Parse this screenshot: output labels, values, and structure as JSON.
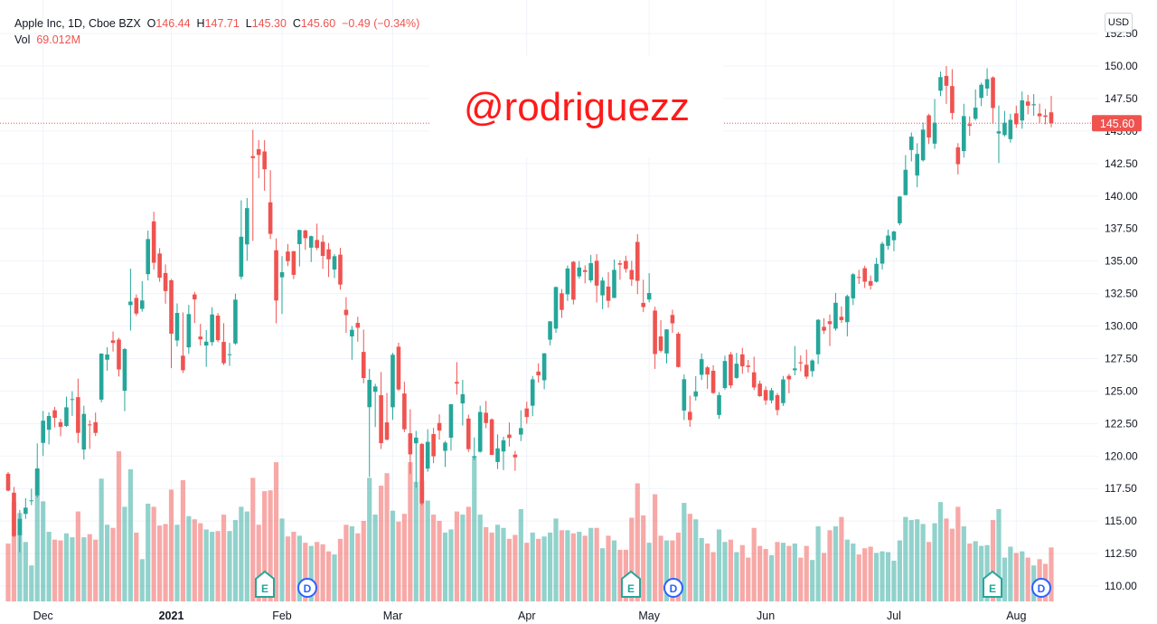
{
  "chart_data": {
    "type": "candlestick",
    "symbol": "Apple Inc, 1D, Cboe BZX",
    "legend": {
      "open_key": "O",
      "open": "146.44",
      "high_key": "H",
      "high": "147.71",
      "low_key": "L",
      "low": "145.30",
      "close_key": "C",
      "close": "145.60",
      "change": "−0.49 (−0.34%)",
      "volume_key": "Vol",
      "volume": "69.012M"
    },
    "currency": "USD",
    "watermark": "@rodriguezz",
    "events": [
      "E",
      "D",
      "E",
      "D",
      "E",
      "D"
    ],
    "up_color": "#26a69a",
    "down_color": "#ef5350",
    "grid": true,
    "ylim": [
      108.61,
      155.08
    ],
    "yticks": [
      {
        "value": 110,
        "label": "110.00"
      },
      {
        "value": 112.5,
        "label": "112.50"
      },
      {
        "value": 115,
        "label": "115.00"
      },
      {
        "value": 117.5,
        "label": "117.50"
      },
      {
        "value": 120,
        "label": "120.00"
      },
      {
        "value": 122.5,
        "label": "122.50"
      },
      {
        "value": 125,
        "label": "125.00"
      },
      {
        "value": 127.5,
        "label": "127.50"
      },
      {
        "value": 130,
        "label": "130.00"
      },
      {
        "value": 132.5,
        "label": "132.50"
      },
      {
        "value": 135,
        "label": "135.00"
      },
      {
        "value": 137.5,
        "label": "137.50"
      },
      {
        "value": 140,
        "label": "140.00"
      },
      {
        "value": 142.5,
        "label": "142.50"
      },
      {
        "value": 145,
        "label": "145.00"
      },
      {
        "value": 147.5,
        "label": "147.50"
      },
      {
        "value": 150,
        "label": "150.00"
      },
      {
        "value": 152.5,
        "label": "152.50"
      }
    ],
    "categories": [
      null,
      null,
      null,
      null,
      null,
      null,
      "Dec",
      null,
      null,
      null,
      null,
      null,
      null,
      null,
      null,
      null,
      null,
      null,
      null,
      null,
      null,
      null,
      null,
      null,
      null,
      null,
      null,
      null,
      "2021",
      null,
      null,
      null,
      null,
      null,
      null,
      null,
      null,
      null,
      null,
      null,
      null,
      null,
      null,
      null,
      null,
      null,
      null,
      "Feb",
      null,
      null,
      null,
      null,
      null,
      null,
      null,
      null,
      null,
      null,
      null,
      null,
      null,
      null,
      null,
      null,
      null,
      null,
      "Mar",
      null,
      null,
      null,
      null,
      null,
      null,
      null,
      null,
      null,
      null,
      null,
      null,
      null,
      null,
      null,
      null,
      null,
      null,
      null,
      null,
      null,
      null,
      "Apr",
      null,
      null,
      null,
      null,
      null,
      null,
      null,
      null,
      null,
      null,
      null,
      null,
      null,
      null,
      null,
      null,
      null,
      null,
      null,
      null,
      "May",
      null,
      null,
      null,
      null,
      null,
      null,
      null,
      null,
      null,
      null,
      null,
      null,
      null,
      null,
      null,
      null,
      null,
      null,
      null,
      "Jun",
      null,
      null,
      null,
      null,
      null,
      null,
      null,
      null,
      null,
      null,
      null,
      null,
      null,
      null,
      null,
      null,
      null,
      null,
      null,
      null,
      null,
      "Jul",
      null,
      null,
      null,
      null,
      null,
      null,
      null,
      null,
      null,
      null,
      null,
      null,
      null,
      null,
      null,
      null,
      null,
      null,
      null,
      null,
      "Aug",
      null,
      null,
      null,
      null,
      null,
      null
    ],
    "open": [
      118.64,
      117.18,
      113.91,
      115.55,
      116.57,
      116.97,
      121.01,
      122.02,
      123.52,
      122.6,
      122.31,
      124.37,
      124.53,
      120.5,
      122.43,
      122.6,
      124.34,
      127.41,
      128.9,
      128.96,
      125.02,
      131.61,
      132.16,
      131.32,
      133.99,
      138.05,
      135.58,
      134.08,
      133.52,
      128.89,
      127.72,
      128.36,
      132.43,
      129.19,
      128.5,
      128.76,
      130.8,
      128.78,
      127.78,
      128.66,
      133.8,
      136.28,
      143.07,
      143.6,
      143.43,
      139.52,
      135.83,
      133.75,
      135.73,
      135.76,
      136.3,
      137.35,
      136.03,
      136.62,
      136.48,
      135.9,
      134.35,
      135.49,
      131.25,
      129.2,
      130.24,
      128.01,
      123.76,
      124.94,
      124.68,
      122.59,
      123.75,
      128.41,
      124.81,
      121.75,
      120.98,
      120.93,
      119.03,
      121.69,
      122.54,
      120.4,
      121.41,
      125.7,
      124.05,
      122.88,
      119.9,
      120.33,
      123.33,
      122.82,
      119.54,
      120.35,
      121.65,
      120.11,
      121.65,
      123.66,
      123.87,
      126.5,
      125.83,
      128.95,
      129.8,
      132.52,
      132.44,
      134.94,
      133.82,
      134.3,
      133.51,
      135.02,
      132.36,
      133.04,
      132.16,
      134.83,
      135.01,
      134.31,
      136.47,
      131.78,
      132.04,
      131.19,
      129.2,
      127.89,
      130.85,
      129.41,
      123.5,
      123.4,
      124.58,
      126.25,
      126.82,
      126.56,
      123.16,
      125.23,
      127.82,
      126.01,
      127.82,
      126.96,
      126.44,
      125.57,
      125.08,
      124.28,
      124.68,
      124.07,
      126.17,
      126.6,
      127.21,
      127.02,
      126.53,
      127.82,
      129.94,
      130.37,
      129.8,
      130.71,
      130.3,
      132.13,
      133.77,
      134.45,
      133.46,
      133.41,
      134.8,
      136.17,
      136.6,
      137.9,
      140.07,
      143.54,
      141.58,
      142.75,
      146.21,
      144.03,
      148.1,
      149.24,
      148.46,
      143.75,
      143.46,
      145.53,
      145.94,
      147.55,
      148.27,
      149.12,
      144.81,
      144.69,
      144.38,
      146.36,
      145.81,
      147.27,
      146.98,
      146.35,
      146.2,
      146.44
    ],
    "high": [
      118.77,
      117.62,
      115.85,
      116.75,
      117.49,
      120.97,
      123.47,
      123.37,
      123.78,
      122.86,
      124.57,
      124.98,
      125.95,
      123.87,
      122.76,
      123.35,
      127.9,
      128.37,
      129.58,
      129.1,
      128.31,
      134.41,
      132.43,
      133.46,
      137.34,
      138.79,
      135.99,
      134.74,
      133.61,
      131.74,
      131.05,
      131.63,
      132.63,
      130.17,
      129.69,
      131.45,
      131,
      130.22,
      128.71,
      132.49,
      139.67,
      139.85,
      145.09,
      144.3,
      144.3,
      141.99,
      136.74,
      135.38,
      136.31,
      135.77,
      137.4,
      137.42,
      136.96,
      137.88,
      136.99,
      136.39,
      135.53,
      136.01,
      132.22,
      130,
      130.71,
      129.72,
      126.71,
      125.56,
      126.46,
      124.85,
      127.93,
      128.72,
      125.71,
      123.6,
      121.94,
      121,
      122.06,
      122.17,
      123.21,
      121.17,
      124,
      127.22,
      125.86,
      123.18,
      121.43,
      123.87,
      124.24,
      122.9,
      121.66,
      121.48,
      122.58,
      120.4,
      123.52,
      124.18,
      126.16,
      127.13,
      127.92,
      130.39,
      133.04,
      132.85,
      134.66,
      135,
      135,
      134.67,
      135.47,
      135.53,
      133.75,
      134.15,
      135.12,
      135.06,
      135.41,
      135.02,
      137.07,
      133.56,
      134.07,
      131.49,
      130.45,
      129.75,
      131.26,
      129.54,
      126.27,
      124.64,
      126.15,
      127.89,
      126.93,
      126.99,
      124.92,
      127.72,
      128,
      127.94,
      128.32,
      127.39,
      127.64,
      125.8,
      125.35,
      125.24,
      124.85,
      126.16,
      126.32,
      128.46,
      127.75,
      128.19,
      127.44,
      130.54,
      130.6,
      130.89,
      132.55,
      131.51,
      132.41,
      134.08,
      134.32,
      134.64,
      133.89,
      135.25,
      136.49,
      137.41,
      137.33,
      140,
      143.15,
      144.89,
      144.06,
      145.65,
      146.32,
      147.46,
      149.57,
      150,
      149.76,
      144.07,
      147.1,
      146.13,
      148.2,
      148.72,
      149.83,
      149.21,
      146.97,
      146.55,
      146.33,
      146.95,
      148.04,
      147.79,
      147.84,
      147.11,
      146.7,
      147.71
    ],
    "low": [
      117.29,
      113.75,
      112.59,
      115.17,
      116.22,
      116.81,
      120.01,
      120.89,
      122.21,
      121.52,
      122.25,
      123.09,
      121,
      119.73,
      120.55,
      121.54,
      124.13,
      126.56,
      128.04,
      126.12,
      123.45,
      129.65,
      130.78,
      131.1,
      133.51,
      134.34,
      133.4,
      131.72,
      126.76,
      128.43,
      126.38,
      127.86,
      130.23,
      128.5,
      126.86,
      128.49,
      128.76,
      127,
      126.94,
      128.55,
      133.59,
      135.02,
      136.54,
      141.37,
      140.41,
      136.7,
      130.21,
      130.93,
      134.61,
      133.61,
      134.59,
      135.86,
      134.92,
      135.85,
      134.4,
      133.77,
      133.69,
      132.79,
      129.47,
      127.41,
      128.8,
      125.6,
      118.39,
      122.23,
      120.54,
      121.2,
      122.79,
      125.01,
      121.84,
      118.62,
      117.57,
      116.21,
      118.79,
      119.45,
      121.26,
      119.16,
      120.42,
      124.72,
      122.34,
      120.32,
      119.68,
      120.26,
      122.14,
      120.07,
      119,
      118.92,
      120.73,
      118.86,
      121.15,
      122.49,
      123.07,
      125.65,
      125.14,
      128.52,
      129.47,
      130.63,
      131.93,
      131.66,
      133.64,
      133.28,
      133.34,
      131.81,
      131.3,
      131.41,
      132.16,
      133.56,
      134.11,
      133.08,
      132.45,
      131.07,
      131.83,
      126.7,
      127.97,
      127.13,
      129.48,
      126.81,
      122.77,
      122.25,
      124.26,
      125.85,
      125.17,
      124.78,
      122.86,
      125.1,
      125.21,
      125.94,
      126.32,
      126.42,
      125.08,
      124.55,
      123.94,
      124.05,
      123.13,
      123.85,
      124.83,
      126.21,
      126.52,
      125.94,
      126.1,
      127.07,
      129.39,
      128.46,
      129.65,
      130.24,
      129.21,
      131.62,
      133.23,
      132.93,
      132.81,
      133.35,
      134.35,
      135.87,
      135.76,
      137.75,
      140.07,
      142.66,
      140.67,
      142.65,
      144,
      143.63,
      147.68,
      147.09,
      145.88,
      141.67,
      142.96,
      144.63,
      145.81,
      146.92,
      147.7,
      145.55,
      142.54,
      144.58,
      144.11,
      145.25,
      145.18,
      146.28,
      146.17,
      145.63,
      145.52,
      145.3
    ],
    "close": [
      117.34,
      113.85,
      115.17,
      116.03,
      116.59,
      119.05,
      122.72,
      123.08,
      122.94,
      122.25,
      123.75,
      124.38,
      121.78,
      123.24,
      122.41,
      121.78,
      127.88,
      127.81,
      128.7,
      126.66,
      128.23,
      131.88,
      130.96,
      131.97,
      136.69,
      134.87,
      133.72,
      132.69,
      129.41,
      131.01,
      126.6,
      130.92,
      132.05,
      128.98,
      128.8,
      130.89,
      128.91,
      127.14,
      127.83,
      132.03,
      136.87,
      139.07,
      142.92,
      143.16,
      142.06,
      137.09,
      131.96,
      134.14,
      134.99,
      133.94,
      137.39,
      136.76,
      136.91,
      136.01,
      135.39,
      135.13,
      135.37,
      133.19,
      130.84,
      129.71,
      129.87,
      126,
      125.86,
      125.35,
      120.99,
      121.26,
      127.79,
      125.12,
      122.06,
      120.13,
      121.42,
      116.36,
      121.09,
      119.98,
      121.96,
      121.03,
      123.99,
      125.57,
      124.76,
      120.53,
      119.99,
      123.39,
      122.54,
      120.09,
      120.59,
      121.21,
      121.39,
      119.9,
      122.15,
      123,
      125.9,
      126.21,
      127.9,
      130.36,
      133,
      131.24,
      134.43,
      132.03,
      134.5,
      134.16,
      134.84,
      133.11,
      133.5,
      131.94,
      134.32,
      134.72,
      134.39,
      133.58,
      133.48,
      131.46,
      132.54,
      127.85,
      128.1,
      129.74,
      130.21,
      126.85,
      125.91,
      122.77,
      124.97,
      127.45,
      126.27,
      124.85,
      124.69,
      127.31,
      125.43,
      127.1,
      126.9,
      126.85,
      125.28,
      124.61,
      124.28,
      125.06,
      123.54,
      125.89,
      125.9,
      126.74,
      127.13,
      126.11,
      127.35,
      130.48,
      129.64,
      130.15,
      131.79,
      130.46,
      132.3,
      133.98,
      133.7,
      133.41,
      133.11,
      134.78,
      136.33,
      136.96,
      137.27,
      139.96,
      142.02,
      144.57,
      143.24,
      145.11,
      144.5,
      145.64,
      149.15,
      148.48,
      146.39,
      142.45,
      146.15,
      145.4,
      146.8,
      148.56,
      148.99,
      146.77,
      144.98,
      145.64,
      145.86,
      145.52,
      147.36,
      146.95,
      147.06,
      146.14,
      146.09,
      145.6
    ],
    "volume": [
      74,
      127,
      113,
      76,
      46,
      169,
      128,
      89,
      79,
      78,
      87,
      82,
      115,
      82,
      86,
      79,
      157,
      98,
      94,
      192,
      121,
      169,
      88,
      54,
      125,
      121,
      97,
      99,
      143,
      98,
      155,
      109,
      105,
      100,
      92,
      89,
      90,
      111,
      90,
      104,
      121,
      115,
      158,
      98,
      141,
      142,
      178,
      106,
      83,
      89,
      84,
      75,
      71,
      76,
      73,
      64,
      60,
      80,
      98,
      96,
      87,
      103,
      158,
      111,
      148,
      164,
      116,
      102,
      112,
      178,
      153,
      154,
      129,
      111,
      103,
      88,
      92,
      115,
      111,
      121,
      185,
      111,
      95,
      88,
      98,
      94,
      80,
      85,
      118,
      75,
      88,
      80,
      83,
      88,
      106,
      91,
      91,
      87,
      89,
      84,
      94,
      94,
      68,
      84,
      78,
      66,
      66,
      107,
      151,
      110,
      75,
      137,
      84,
      78,
      78,
      88,
      126,
      112,
      105,
      81,
      74,
      63,
      92,
      76,
      79,
      63,
      72,
      56,
      94,
      71,
      67,
      59,
      76,
      75,
      71,
      74,
      56,
      71,
      53,
      96,
      62,
      91,
      96,
      108,
      79,
      74,
      60,
      68,
      70,
      62,
      64,
      63,
      52,
      78,
      108,
      104,
      105,
      99,
      76,
      100,
      127,
      106,
      93,
      121,
      96,
      74,
      77,
      71,
      72,
      104,
      118,
      56,
      70,
      62,
      64,
      56,
      46,
      54,
      48,
      69.012
    ]
  }
}
